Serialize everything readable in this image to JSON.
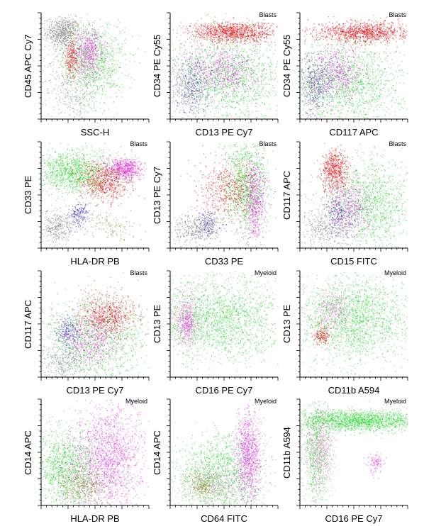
{
  "colors": {
    "blasts_red": "#e0191f",
    "myeloid_green": "#22d62a",
    "monocyte_magenta": "#e23ee0",
    "lymph_blue": "#4a3fb8",
    "debris_gray": "#8a8a8a",
    "granulocyte_pink": "#d9a0c8",
    "other_olive": "#8c8a2a"
  },
  "chart_data": [
    {
      "type": "scatter",
      "xlabel": "SSC-H",
      "ylabel": "CD45 APC Cy7",
      "gate": "",
      "clusters": [
        {
          "color": "debris_gray",
          "cx": 0.2,
          "cy": 0.82,
          "sx": 0.08,
          "sy": 0.07,
          "n": 700
        },
        {
          "color": "debris_gray",
          "cx": 0.3,
          "cy": 0.35,
          "sx": 0.15,
          "sy": 0.22,
          "n": 500
        },
        {
          "color": "myeloid_green",
          "cx": 0.48,
          "cy": 0.55,
          "sx": 0.15,
          "sy": 0.2,
          "n": 900
        },
        {
          "color": "monocyte_magenta",
          "cx": 0.45,
          "cy": 0.65,
          "sx": 0.07,
          "sy": 0.1,
          "n": 450
        },
        {
          "color": "blasts_red",
          "cx": 0.28,
          "cy": 0.58,
          "sx": 0.04,
          "sy": 0.09,
          "n": 250
        },
        {
          "color": "granulocyte_pink",
          "cx": 0.42,
          "cy": 0.5,
          "sx": 0.06,
          "sy": 0.06,
          "n": 200
        }
      ]
    },
    {
      "type": "scatter",
      "xlabel": "CD13 PE Cy7",
      "ylabel": "CD34 PE Cy55",
      "gate": "Blasts",
      "clusters": [
        {
          "color": "myeloid_green",
          "cx": 0.55,
          "cy": 0.38,
          "sx": 0.25,
          "sy": 0.2,
          "n": 1400
        },
        {
          "color": "monocyte_magenta",
          "cx": 0.5,
          "cy": 0.45,
          "sx": 0.15,
          "sy": 0.12,
          "n": 600
        },
        {
          "color": "lymph_blue",
          "cx": 0.2,
          "cy": 0.35,
          "sx": 0.08,
          "sy": 0.15,
          "n": 350
        },
        {
          "color": "blasts_red",
          "cx": 0.58,
          "cy": 0.82,
          "sx": 0.2,
          "sy": 0.05,
          "n": 1100
        },
        {
          "color": "debris_gray",
          "cx": 0.15,
          "cy": 0.3,
          "sx": 0.08,
          "sy": 0.15,
          "n": 250
        }
      ]
    },
    {
      "type": "scatter",
      "xlabel": "CD117 APC",
      "ylabel": "CD34 PE Cy55",
      "gate": "Blasts",
      "clusters": [
        {
          "color": "myeloid_green",
          "cx": 0.45,
          "cy": 0.35,
          "sx": 0.25,
          "sy": 0.2,
          "n": 1400
        },
        {
          "color": "monocyte_magenta",
          "cx": 0.35,
          "cy": 0.42,
          "sx": 0.12,
          "sy": 0.12,
          "n": 550
        },
        {
          "color": "lymph_blue",
          "cx": 0.15,
          "cy": 0.35,
          "sx": 0.07,
          "sy": 0.15,
          "n": 300
        },
        {
          "color": "blasts_red",
          "cx": 0.6,
          "cy": 0.82,
          "sx": 0.22,
          "sy": 0.05,
          "n": 1100
        },
        {
          "color": "debris_gray",
          "cx": 0.12,
          "cy": 0.3,
          "sx": 0.06,
          "sy": 0.12,
          "n": 250
        }
      ]
    },
    {
      "type": "scatter",
      "xlabel": "HLA-DR PB",
      "ylabel": "CD33 PE",
      "gate": "Blasts",
      "clusters": [
        {
          "color": "myeloid_green",
          "cx": 0.3,
          "cy": 0.72,
          "sx": 0.18,
          "sy": 0.1,
          "n": 1100
        },
        {
          "color": "monocyte_magenta",
          "cx": 0.78,
          "cy": 0.75,
          "sx": 0.08,
          "sy": 0.05,
          "n": 600
        },
        {
          "color": "blasts_red",
          "cx": 0.58,
          "cy": 0.62,
          "sx": 0.12,
          "sy": 0.1,
          "n": 700
        },
        {
          "color": "lymph_blue",
          "cx": 0.35,
          "cy": 0.32,
          "sx": 0.05,
          "sy": 0.06,
          "n": 200
        },
        {
          "color": "debris_gray",
          "cx": 0.15,
          "cy": 0.2,
          "sx": 0.08,
          "sy": 0.08,
          "n": 350
        },
        {
          "color": "other_olive",
          "cx": 0.65,
          "cy": 0.2,
          "sx": 0.12,
          "sy": 0.06,
          "n": 120
        }
      ]
    },
    {
      "type": "scatter",
      "xlabel": "CD33 PE",
      "ylabel": "CD13 PE Cy7",
      "gate": "Blasts",
      "clusters": [
        {
          "color": "myeloid_green",
          "cx": 0.7,
          "cy": 0.6,
          "sx": 0.1,
          "sy": 0.22,
          "n": 1000
        },
        {
          "color": "monocyte_magenta",
          "cx": 0.78,
          "cy": 0.45,
          "sx": 0.05,
          "sy": 0.2,
          "n": 600
        },
        {
          "color": "blasts_red",
          "cx": 0.55,
          "cy": 0.55,
          "sx": 0.15,
          "sy": 0.15,
          "n": 600
        },
        {
          "color": "lymph_blue",
          "cx": 0.35,
          "cy": 0.22,
          "sx": 0.06,
          "sy": 0.06,
          "n": 200
        },
        {
          "color": "debris_gray",
          "cx": 0.2,
          "cy": 0.18,
          "sx": 0.1,
          "sy": 0.08,
          "n": 350
        }
      ]
    },
    {
      "type": "scatter",
      "xlabel": "CD15 FITC",
      "ylabel": "CD117 APC",
      "gate": "Blasts",
      "clusters": [
        {
          "color": "myeloid_green",
          "cx": 0.62,
          "cy": 0.42,
          "sx": 0.22,
          "sy": 0.22,
          "n": 1300
        },
        {
          "color": "blasts_red",
          "cx": 0.32,
          "cy": 0.72,
          "sx": 0.06,
          "sy": 0.1,
          "n": 600
        },
        {
          "color": "monocyte_magenta",
          "cx": 0.45,
          "cy": 0.35,
          "sx": 0.1,
          "sy": 0.15,
          "n": 500
        },
        {
          "color": "lymph_blue",
          "cx": 0.35,
          "cy": 0.3,
          "sx": 0.06,
          "sy": 0.1,
          "n": 200
        },
        {
          "color": "debris_gray",
          "cx": 0.2,
          "cy": 0.2,
          "sx": 0.1,
          "sy": 0.1,
          "n": 300
        }
      ]
    },
    {
      "type": "scatter",
      "xlabel": "CD13 PE Cy7",
      "ylabel": "CD117 APC",
      "gate": "Blasts",
      "clusters": [
        {
          "color": "myeloid_green",
          "cx": 0.5,
          "cy": 0.35,
          "sx": 0.25,
          "sy": 0.2,
          "n": 1200
        },
        {
          "color": "blasts_red",
          "cx": 0.62,
          "cy": 0.58,
          "sx": 0.14,
          "sy": 0.1,
          "n": 700
        },
        {
          "color": "monocyte_magenta",
          "cx": 0.45,
          "cy": 0.35,
          "sx": 0.12,
          "sy": 0.12,
          "n": 500
        },
        {
          "color": "lymph_blue",
          "cx": 0.25,
          "cy": 0.42,
          "sx": 0.06,
          "sy": 0.08,
          "n": 250
        },
        {
          "color": "debris_gray",
          "cx": 0.2,
          "cy": 0.15,
          "sx": 0.12,
          "sy": 0.08,
          "n": 300
        }
      ]
    },
    {
      "type": "scatter",
      "xlabel": "CD16 PE Cy7",
      "ylabel": "CD13 PE",
      "gate": "Myeloid",
      "clusters": [
        {
          "color": "myeloid_green",
          "cx": 0.45,
          "cy": 0.55,
          "sx": 0.3,
          "sy": 0.2,
          "n": 1800
        },
        {
          "color": "granulocyte_pink",
          "cx": 0.15,
          "cy": 0.55,
          "sx": 0.07,
          "sy": 0.15,
          "n": 600
        },
        {
          "color": "monocyte_magenta",
          "cx": 0.15,
          "cy": 0.5,
          "sx": 0.04,
          "sy": 0.08,
          "n": 200
        }
      ]
    },
    {
      "type": "scatter",
      "xlabel": "CD11b A594",
      "ylabel": "CD13 PE",
      "gate": "Myeloid",
      "clusters": [
        {
          "color": "myeloid_green",
          "cx": 0.5,
          "cy": 0.55,
          "sx": 0.28,
          "sy": 0.2,
          "n": 1800
        },
        {
          "color": "granulocyte_pink",
          "cx": 0.3,
          "cy": 0.62,
          "sx": 0.08,
          "sy": 0.1,
          "n": 500
        },
        {
          "color": "blasts_red",
          "cx": 0.2,
          "cy": 0.4,
          "sx": 0.04,
          "sy": 0.05,
          "n": 150
        }
      ]
    },
    {
      "type": "scatter",
      "xlabel": "HLA-DR PB",
      "ylabel": "CD14 APC",
      "gate": "Myeloid",
      "clusters": [
        {
          "color": "myeloid_green",
          "cx": 0.25,
          "cy": 0.35,
          "sx": 0.15,
          "sy": 0.2,
          "n": 1200
        },
        {
          "color": "monocyte_magenta",
          "cx": 0.62,
          "cy": 0.45,
          "sx": 0.16,
          "sy": 0.25,
          "n": 1600
        },
        {
          "color": "granulocyte_pink",
          "cx": 0.35,
          "cy": 0.25,
          "sx": 0.1,
          "sy": 0.12,
          "n": 400
        },
        {
          "color": "other_olive",
          "cx": 0.4,
          "cy": 0.2,
          "sx": 0.12,
          "sy": 0.08,
          "n": 300
        }
      ]
    },
    {
      "type": "scatter",
      "xlabel": "CD64 FITC",
      "ylabel": "CD14 APC",
      "gate": "Myeloid",
      "clusters": [
        {
          "color": "myeloid_green",
          "cx": 0.45,
          "cy": 0.3,
          "sx": 0.2,
          "sy": 0.18,
          "n": 1300
        },
        {
          "color": "monocyte_magenta",
          "cx": 0.72,
          "cy": 0.45,
          "sx": 0.06,
          "sy": 0.22,
          "n": 1000
        },
        {
          "color": "granulocyte_pink",
          "cx": 0.4,
          "cy": 0.2,
          "sx": 0.12,
          "sy": 0.08,
          "n": 500
        },
        {
          "color": "other_olive",
          "cx": 0.3,
          "cy": 0.18,
          "sx": 0.08,
          "sy": 0.06,
          "n": 200
        }
      ]
    },
    {
      "type": "scatter",
      "xlabel": "CD16 PE Cy7",
      "ylabel": "CD11b A594",
      "gate": "Myeloid",
      "clusters": [
        {
          "color": "myeloid_green",
          "cx": 0.55,
          "cy": 0.8,
          "sx": 0.3,
          "sy": 0.05,
          "n": 1600
        },
        {
          "color": "myeloid_green",
          "cx": 0.15,
          "cy": 0.5,
          "sx": 0.06,
          "sy": 0.25,
          "n": 600
        },
        {
          "color": "granulocyte_pink",
          "cx": 0.18,
          "cy": 0.5,
          "sx": 0.07,
          "sy": 0.2,
          "n": 900
        },
        {
          "color": "monocyte_magenta",
          "cx": 0.7,
          "cy": 0.4,
          "sx": 0.04,
          "sy": 0.05,
          "n": 100
        }
      ]
    }
  ]
}
